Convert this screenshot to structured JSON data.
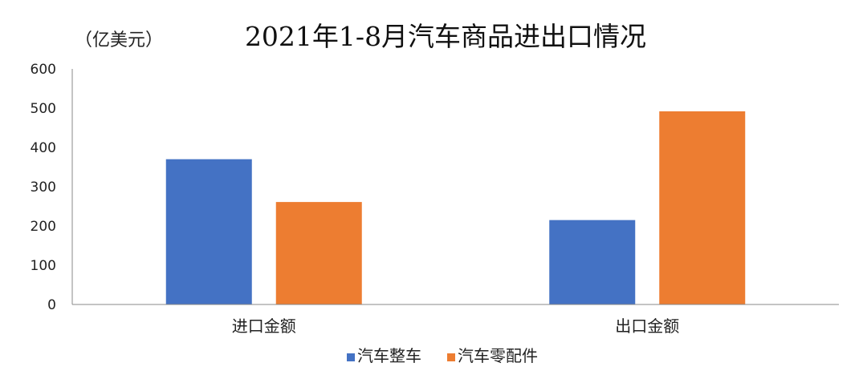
{
  "chart_data": {
    "type": "bar",
    "title": "2021年1-8月汽车商品进出口情况",
    "unit": "（亿美元）",
    "categories": [
      "进口金额",
      "出口金额"
    ],
    "series": [
      {
        "name": "汽车整车",
        "values": [
          370,
          215
        ],
        "color": "#4472C4"
      },
      {
        "name": "汽车零配件",
        "values": [
          261,
          492
        ],
        "color": "#ED7D31"
      }
    ],
    "ylim": [
      0,
      600
    ],
    "yticks": [
      0,
      100,
      200,
      300,
      400,
      500,
      600
    ],
    "grid": false,
    "legend_position": "bottom"
  }
}
